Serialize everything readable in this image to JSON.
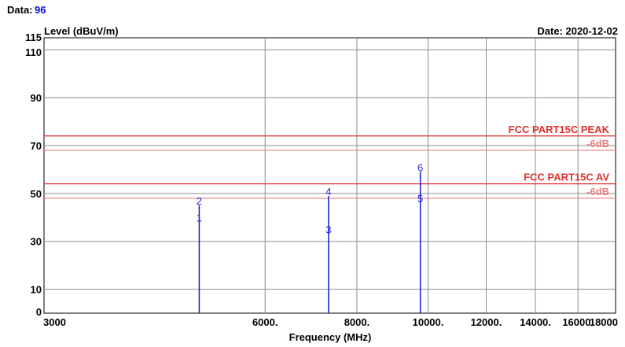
{
  "header": {
    "data_label": "Data:",
    "data_value": "96",
    "date": "Date: 2020-12-02"
  },
  "chart_data": {
    "type": "line",
    "xlabel": "Frequency (MHz)",
    "ylabel": "Level (dBuV/m)",
    "xlim": [
      3000,
      18000
    ],
    "ylim": [
      0,
      115
    ],
    "x_scale": "log",
    "x_ticks": [
      3000,
      6000,
      8000,
      10000,
      12000,
      14000,
      16000,
      18000
    ],
    "x_tick_labels": [
      "3000",
      "6000.",
      "8000.",
      "10000.",
      "12000.",
      "14000.",
      "16000.",
      "18000"
    ],
    "y_ticks": [
      0,
      10,
      30,
      50,
      70,
      90,
      110,
      115
    ],
    "y_tick_labels": [
      "0",
      "10",
      "30",
      "50",
      "70",
      "90",
      "110",
      "115"
    ],
    "grid": true,
    "limits": [
      {
        "name": "FCC PART15C PEAK",
        "value": 74,
        "color": "#e03030"
      },
      {
        "name": "-6dB",
        "value": 68,
        "color": "#f08080"
      },
      {
        "name": "FCC PART15C AV",
        "value": 54,
        "color": "#e03030"
      },
      {
        "name": "-6dB",
        "value": 48,
        "color": "#f08080"
      }
    ],
    "spikes": [
      {
        "x": 4880,
        "peak": 45
      },
      {
        "x": 7320,
        "peak": 49
      },
      {
        "x": 9760,
        "peak": 59
      }
    ],
    "markers": [
      {
        "label": "1",
        "x": 4880,
        "y": 40
      },
      {
        "label": "2",
        "x": 4880,
        "y": 47
      },
      {
        "label": "3",
        "x": 7320,
        "y": 35
      },
      {
        "label": "4",
        "x": 7320,
        "y": 51
      },
      {
        "label": "5",
        "x": 9760,
        "y": 48
      },
      {
        "label": "6",
        "x": 9760,
        "y": 61
      }
    ],
    "trace_color": "#1a1ad0"
  }
}
